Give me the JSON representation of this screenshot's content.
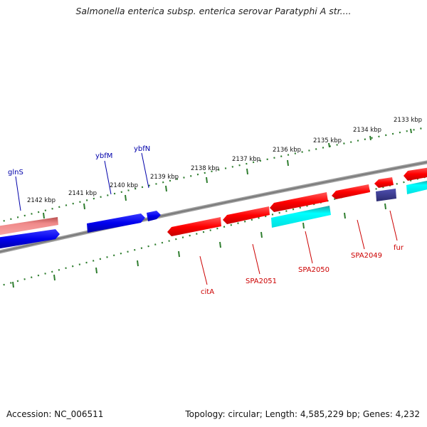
{
  "title": "Salmonella enterica subsp. enterica serovar Paratyphi A str....",
  "footer": {
    "accession": "Accession: NC_006511",
    "summary": "Topology: circular; Length: 4,585,229 bp; Genes: 4,232"
  },
  "colors": {
    "backbone": "#808080",
    "tick": "#2e7d2e",
    "forward_gene": "#ff0000",
    "forward_label": "#cc0000",
    "reverse_gene": "#0000ee",
    "reverse_label": "#0000aa",
    "pseudo_pink": "#f08a8a",
    "cyan": "#00ffff",
    "navy": "#3b3b8f"
  },
  "ticks": [
    {
      "label": "2133 kbp"
    },
    {
      "label": "2134 kbp"
    },
    {
      "label": "2135 kbp"
    },
    {
      "label": "2136 kbp"
    },
    {
      "label": "2137 kbp"
    },
    {
      "label": "2138 kbp"
    },
    {
      "label": "2139 kbp"
    },
    {
      "label": "2140 kbp"
    },
    {
      "label": "2141 kbp"
    },
    {
      "label": "2142 kbp"
    }
  ],
  "gene_labels": {
    "glnS": "glnS",
    "ybfM": "ybfM",
    "ybfN": "ybfN",
    "citA": "citA",
    "SPA2051": "SPA2051",
    "SPA2050": "SPA2050",
    "SPA2049": "SPA2049",
    "fur": "fur"
  }
}
